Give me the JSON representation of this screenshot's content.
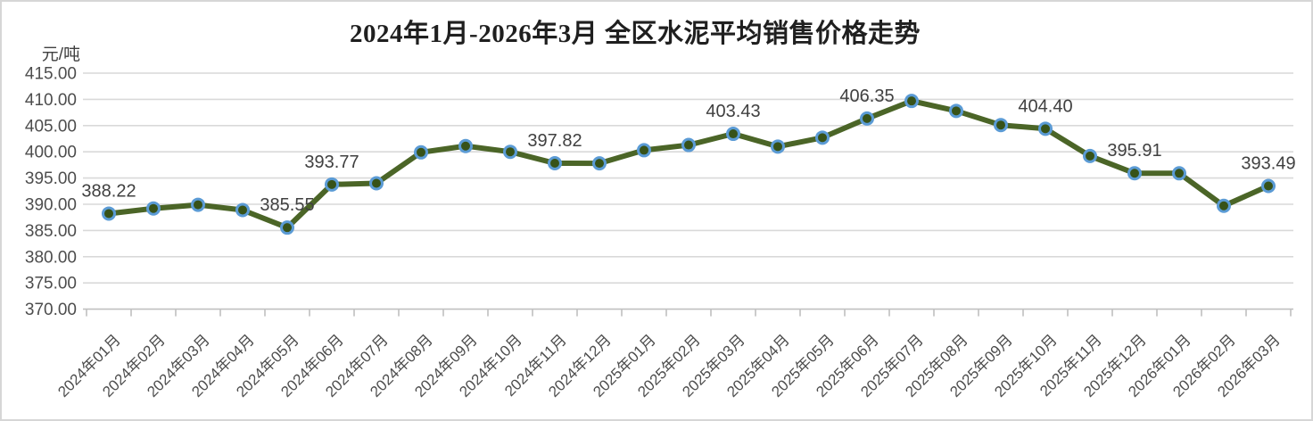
{
  "chart": {
    "title": "2024年1月-2026年3月 全区水泥平均销售价格走势",
    "unit": "元/吨"
  },
  "chart_data": {
    "type": "line",
    "title": "2024年1月-2026年3月 全区水泥平均销售价格走势",
    "xlabel": "",
    "ylabel": "元/吨",
    "ylim": [
      370,
      415
    ],
    "ytick_step": 5,
    "ytick_labels": [
      "415.00",
      "410.00",
      "405.00",
      "400.00",
      "395.00",
      "390.00",
      "385.00",
      "380.00",
      "375.00",
      "370.00"
    ],
    "grid": true,
    "legend_position": "none",
    "categories": [
      "2024年01月",
      "2024年02月",
      "2024年03月",
      "2024年04月",
      "2024年05月",
      "2024年06月",
      "2024年07月",
      "2024年08月",
      "2024年09月",
      "2024年10月",
      "2024年11月",
      "2024年12月",
      "2025年01月",
      "2025年02月",
      "2025年03月",
      "2025年04月",
      "2025年05月",
      "2025年06月",
      "2025年07月",
      "2025年08月",
      "2025年09月",
      "2025年10月",
      "2025年11月",
      "2025年12月",
      "2026年01月",
      "2026年02月",
      "2026年03月"
    ],
    "values": [
      388.22,
      389.2,
      389.9,
      388.9,
      385.55,
      393.77,
      394.0,
      399.9,
      401.1,
      400.0,
      397.82,
      397.8,
      400.3,
      401.3,
      403.43,
      401.0,
      402.7,
      406.35,
      409.7,
      407.8,
      405.1,
      404.4,
      399.2,
      395.91,
      395.9,
      389.7,
      393.49
    ],
    "point_labels": {
      "0": "388.22",
      "4": "385.55",
      "5": "393.77",
      "10": "397.82",
      "14": "403.43",
      "17": "406.35",
      "21": "404.40",
      "23": "395.91",
      "26": "393.49"
    },
    "colors": {
      "line": "#4b6527",
      "marker_ring": "#5b9bd5",
      "marker_fill": "#375218",
      "gridline": "#d9d9d9",
      "axis": "#c0c0c0",
      "tick_text": "#4d4d4d",
      "data_label_text": "#404040"
    }
  }
}
